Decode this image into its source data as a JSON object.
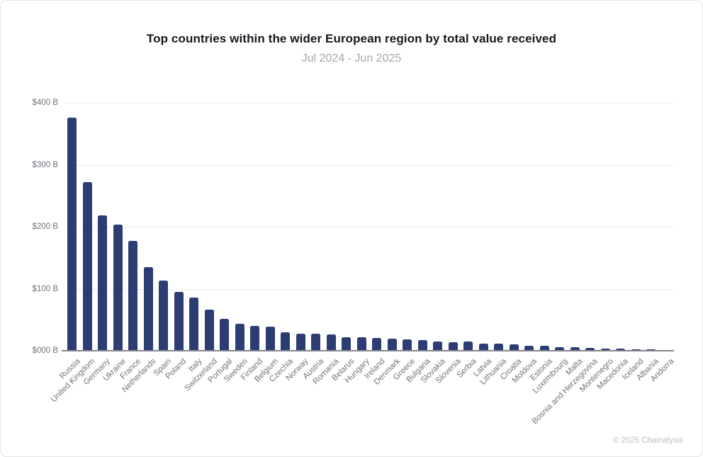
{
  "page": {
    "footer": "© 2025 Chainalysis"
  },
  "chart_data": {
    "type": "bar",
    "title": "Top countries within the wider European region by total value received",
    "subtitle": "Jul 2024 - Jun 2025",
    "xlabel": "",
    "ylabel": "",
    "ylim": [
      0,
      400
    ],
    "grid": true,
    "legend": "none",
    "bar_color": "#2c3d74",
    "gridline_color": "#e9e9ee",
    "axis_color": "#84848e",
    "y_tick_values": [
      0,
      100,
      200,
      300,
      400
    ],
    "y_tick_labels": [
      "$000 B",
      "$100 B",
      "$200 B",
      "$300 B",
      "$400 B"
    ],
    "categories": [
      "Russia",
      "United Kingdom",
      "Germany",
      "Ukraine",
      "France",
      "Netherlands",
      "Spain",
      "Poland",
      "Italy",
      "Switzerland",
      "Portugal",
      "Sweden",
      "Finland",
      "Belgium",
      "Czechia",
      "Norway",
      "Austria",
      "Romania",
      "Belarus",
      "Hungary",
      "Ireland",
      "Denmark",
      "Greece",
      "Bulgaria",
      "Slovakia",
      "Slovenia",
      "Serbia",
      "Latvia",
      "Lithuania",
      "Croatia",
      "Moldova",
      "Estonia",
      "Luxembourg",
      "Malta",
      "Bosnia and Herzegovina",
      "Montenegro",
      "Macedonia",
      "Iceland",
      "Albania",
      "Andorra"
    ],
    "values": [
      376,
      272,
      218,
      204,
      177,
      135,
      113,
      95,
      86,
      66,
      52,
      44,
      40,
      39,
      30,
      28,
      27,
      26,
      22,
      22,
      21,
      19,
      18,
      17,
      15,
      14,
      15,
      12,
      11,
      10,
      8,
      8,
      6,
      6,
      4.5,
      4,
      3,
      2.5,
      2,
      0.8
    ]
  }
}
